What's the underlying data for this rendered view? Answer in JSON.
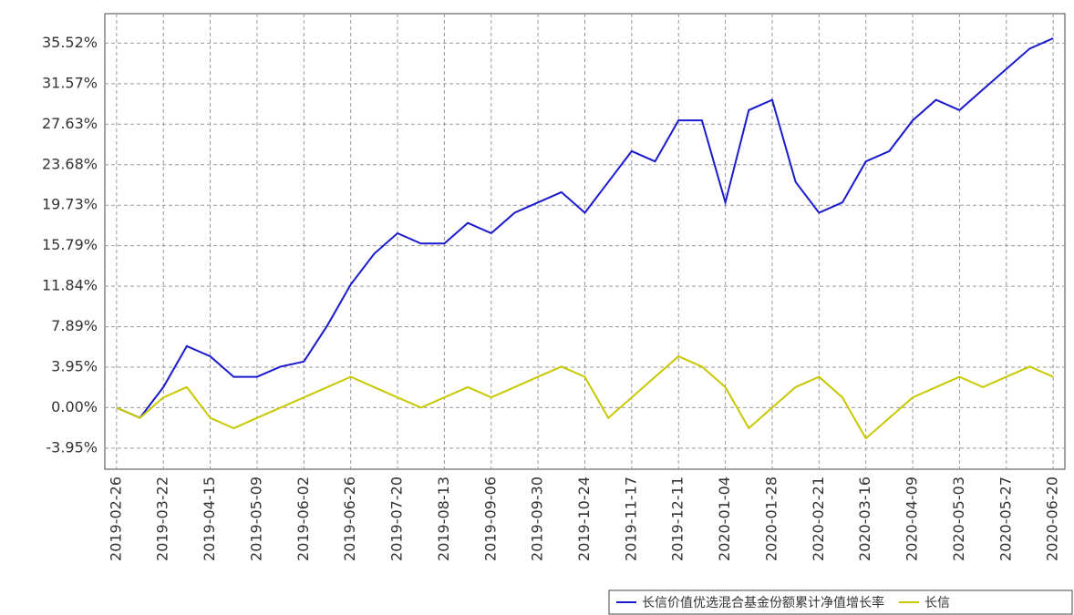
{
  "chart_data": {
    "type": "line",
    "categories": [
      "2019-02-26",
      null,
      "2019-03-22",
      null,
      "2019-04-15",
      null,
      "2019-05-09",
      null,
      "2019-06-02",
      null,
      "2019-06-26",
      null,
      "2019-07-20",
      null,
      "2019-08-13",
      null,
      "2019-09-06",
      null,
      "2019-09-30",
      null,
      "2019-10-24",
      null,
      "2019-11-17",
      null,
      "2019-12-11",
      null,
      "2020-01-04",
      null,
      "2020-01-28",
      null,
      "2020-02-21",
      null,
      "2020-03-16",
      null,
      "2020-04-09",
      null,
      "2020-05-03",
      null,
      "2020-05-27",
      null,
      "2020-06-20"
    ],
    "series": [
      {
        "name": "长信价值优选混合基金份额累计净值增长率",
        "color": "#1a1acc",
        "values": [
          0,
          -1,
          2,
          6,
          5,
          3,
          3,
          4,
          4.5,
          8,
          12,
          15,
          17,
          16,
          16,
          18,
          17,
          19,
          20,
          21,
          19,
          22,
          25,
          24,
          28,
          28,
          20,
          29,
          30,
          22,
          19,
          20,
          24,
          25,
          28,
          30,
          29,
          31,
          33,
          35,
          36
        ]
      },
      {
        "name": "长信",
        "color": "#c8c800",
        "values": [
          0,
          -1,
          1,
          2,
          -1,
          -2,
          -1,
          0,
          1,
          2,
          3,
          2,
          1,
          0,
          1,
          2,
          1,
          2,
          3,
          4,
          3,
          -1,
          1,
          3,
          5,
          4,
          2,
          -2,
          0,
          2,
          3,
          1,
          -3,
          -1,
          1,
          2,
          3,
          2,
          3,
          4,
          3
        ]
      }
    ],
    "ylim": [
      -6,
      38.4
    ],
    "yticks": [
      {
        "value": -3.95,
        "label": "-3.95%"
      },
      {
        "value": 0,
        "label": "0.00%"
      },
      {
        "value": 3.95,
        "label": "3.95%"
      },
      {
        "value": 7.89,
        "label": "7.89%"
      },
      {
        "value": 11.84,
        "label": "11.84%"
      },
      {
        "value": 15.79,
        "label": "15.79%"
      },
      {
        "value": 19.73,
        "label": "19.73%"
      },
      {
        "value": 23.68,
        "label": "23.68%"
      },
      {
        "value": 27.63,
        "label": "27.63%"
      },
      {
        "value": 31.57,
        "label": "31.57%"
      },
      {
        "value": 35.52,
        "label": "35.52%"
      }
    ],
    "grid": true,
    "legend": "bottom-right"
  }
}
